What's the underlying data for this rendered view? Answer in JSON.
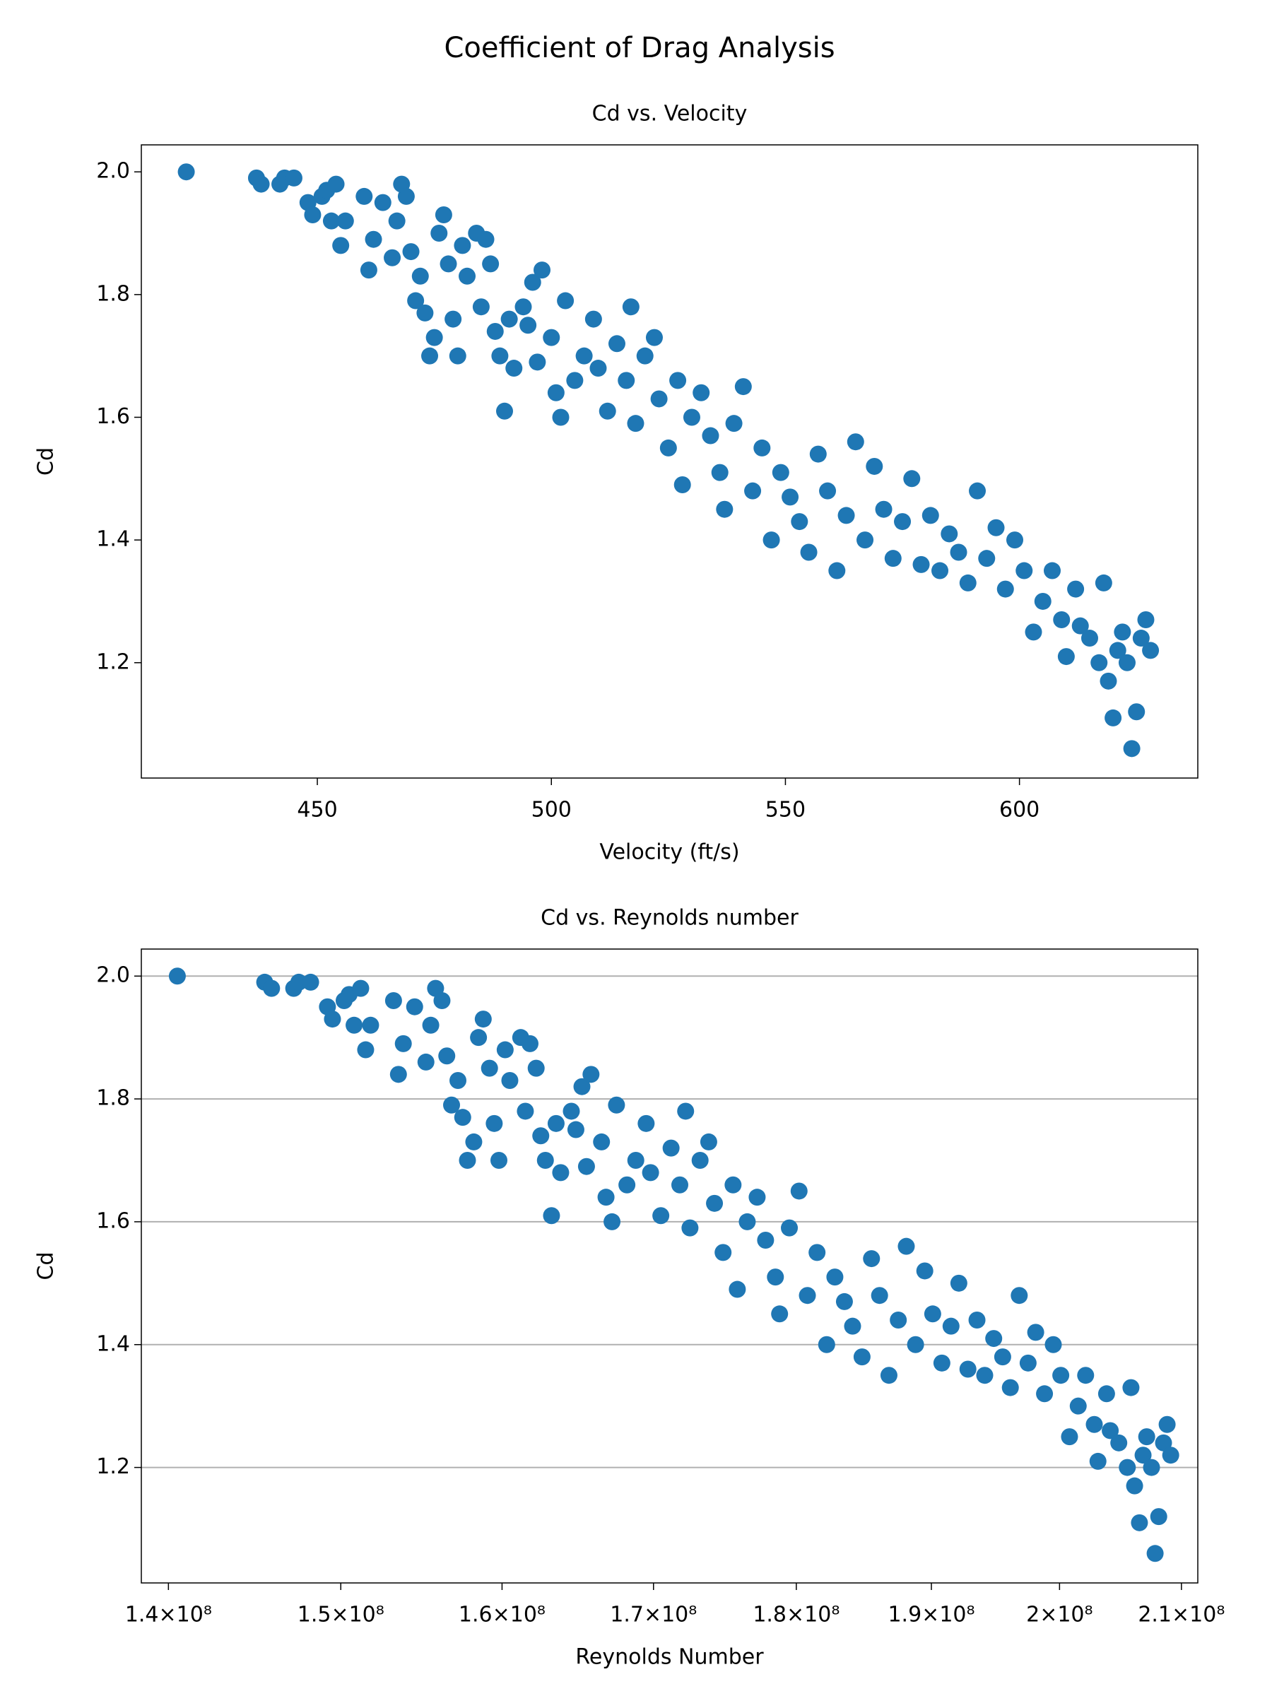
{
  "title": "Coefficient of Drag Analysis",
  "chart_data": [
    {
      "type": "scatter",
      "title": "Cd vs. Velocity",
      "xlabel": "Velocity (ft/s)",
      "ylabel": "Cd",
      "color": "#1f77b4",
      "grid": false,
      "xscale": "linear",
      "xlim": [
        412.4,
        638.1
      ],
      "ylim": [
        1.012,
        2.044
      ],
      "xticks": [
        450,
        500,
        550,
        600
      ],
      "yticks": [
        1.2,
        1.4,
        1.6,
        1.8,
        {
          "value": 2,
          "label": "2.0"
        }
      ],
      "x": [
        422,
        437,
        438,
        442,
        443,
        445,
        448,
        449,
        451,
        452,
        453,
        454,
        455,
        456,
        460,
        461,
        462,
        464,
        466,
        467,
        468,
        469,
        470,
        471,
        472,
        473,
        474,
        475,
        476,
        477,
        478,
        479,
        480,
        481,
        482,
        484,
        485,
        486,
        487,
        488,
        489,
        490,
        491,
        492,
        494,
        495,
        496,
        497,
        498,
        500,
        501,
        502,
        503,
        505,
        507,
        509,
        510,
        512,
        514,
        516,
        517,
        518,
        520,
        522,
        523,
        525,
        527,
        528,
        530,
        532,
        534,
        536,
        537,
        539,
        541,
        543,
        545,
        547,
        549,
        551,
        553,
        555,
        557,
        559,
        561,
        563,
        565,
        567,
        569,
        571,
        573,
        575,
        577,
        579,
        581,
        583,
        585,
        587,
        589,
        591,
        593,
        595,
        597,
        599,
        601,
        603,
        605,
        607,
        609,
        610,
        612,
        613,
        615,
        617,
        618,
        619,
        620,
        621,
        622,
        623,
        624,
        625,
        626,
        627,
        628
      ],
      "values": [
        2.0,
        1.99,
        1.98,
        1.98,
        1.99,
        1.99,
        1.95,
        1.93,
        1.96,
        1.97,
        1.92,
        1.98,
        1.88,
        1.92,
        1.96,
        1.84,
        1.89,
        1.95,
        1.86,
        1.92,
        1.98,
        1.96,
        1.87,
        1.79,
        1.83,
        1.77,
        1.7,
        1.73,
        1.9,
        1.93,
        1.85,
        1.76,
        1.7,
        1.88,
        1.83,
        1.9,
        1.78,
        1.89,
        1.85,
        1.74,
        1.7,
        1.61,
        1.76,
        1.68,
        1.78,
        1.75,
        1.82,
        1.69,
        1.84,
        1.73,
        1.64,
        1.6,
        1.79,
        1.66,
        1.7,
        1.76,
        1.68,
        1.61,
        1.72,
        1.66,
        1.78,
        1.59,
        1.7,
        1.73,
        1.63,
        1.55,
        1.66,
        1.49,
        1.6,
        1.64,
        1.57,
        1.51,
        1.45,
        1.59,
        1.65,
        1.48,
        1.55,
        1.4,
        1.51,
        1.47,
        1.43,
        1.38,
        1.54,
        1.48,
        1.35,
        1.44,
        1.56,
        1.4,
        1.52,
        1.45,
        1.37,
        1.43,
        1.5,
        1.36,
        1.44,
        1.35,
        1.41,
        1.38,
        1.33,
        1.48,
        1.37,
        1.42,
        1.32,
        1.4,
        1.35,
        1.25,
        1.3,
        1.35,
        1.27,
        1.21,
        1.32,
        1.26,
        1.24,
        1.2,
        1.33,
        1.17,
        1.11,
        1.22,
        1.25,
        1.2,
        1.06,
        1.12,
        1.24,
        1.27,
        1.22
      ]
    },
    {
      "type": "scatter",
      "title": "Cd vs. Reynolds number",
      "xlabel": "Reynolds Number",
      "ylabel": "Cd",
      "color": "#1f77b4",
      "grid": true,
      "xscale": "log",
      "xlim": [
        138490000.0,
        211380000.0
      ],
      "ylim": [
        1.012,
        2.044
      ],
      "xticks": [
        {
          "value": 140000000.0,
          "label": "1.4×10⁸"
        },
        {
          "value": 150000000.0,
          "label": "1.5×10⁸"
        },
        {
          "value": 160000000.0,
          "label": "1.6×10⁸"
        },
        {
          "value": 170000000.0,
          "label": "1.7×10⁸"
        },
        {
          "value": 180000000.0,
          "label": "1.8×10⁸"
        },
        {
          "value": 190000000.0,
          "label": "1.9×10⁸"
        },
        {
          "value": 200000000.0,
          "label": "2×10⁸"
        },
        {
          "value": 210000000.0,
          "label": "2.1×10⁸"
        }
      ],
      "yticks": [
        1.2,
        1.4,
        1.6,
        1.8,
        {
          "value": 2,
          "label": "2.0"
        }
      ],
      "x": [
        140500000.0,
        145500000.0,
        145900000.0,
        147200000.0,
        147500000.0,
        148200000.0,
        149200000.0,
        149500000.0,
        150200000.0,
        150500000.0,
        150800000.0,
        151200000.0,
        151500000.0,
        151800000.0,
        153200000.0,
        153500000.0,
        153800000.0,
        154500000.0,
        155200000.0,
        155500000.0,
        155800000.0,
        156200000.0,
        156500000.0,
        156800000.0,
        157200000.0,
        157500000.0,
        157800000.0,
        158200000.0,
        158500000.0,
        158800000.0,
        159200000.0,
        159500000.0,
        159800000.0,
        160200000.0,
        160500000.0,
        161200000.0,
        161500000.0,
        161800000.0,
        162200000.0,
        162500000.0,
        162800000.0,
        163200000.0,
        163500000.0,
        163800000.0,
        164500000.0,
        164800000.0,
        165200000.0,
        165500000.0,
        165800000.0,
        166500000.0,
        166800000.0,
        167200000.0,
        167500000.0,
        168200000.0,
        168800000.0,
        169500000.0,
        169800000.0,
        170500000.0,
        171200000.0,
        171800000.0,
        172200000.0,
        172500000.0,
        173200000.0,
        173800000.0,
        174200000.0,
        174800000.0,
        175500000.0,
        175800000.0,
        176500000.0,
        177200000.0,
        177800000.0,
        178500000.0,
        178800000.0,
        179500000.0,
        180200000.0,
        180800000.0,
        181500000.0,
        182200000.0,
        182800000.0,
        183500000.0,
        184100000.0,
        184800000.0,
        185500000.0,
        186100000.0,
        186800000.0,
        187500000.0,
        188100000.0,
        188800000.0,
        189500000.0,
        190100000.0,
        190800000.0,
        191500000.0,
        192100000.0,
        192800000.0,
        193500000.0,
        194100000.0,
        194800000.0,
        195500000.0,
        196100000.0,
        196800000.0,
        197500000.0,
        198100000.0,
        198800000.0,
        199500000.0,
        200100000.0,
        200800000.0,
        201500000.0,
        202100000.0,
        202800000.0,
        203100000.0,
        203800000.0,
        204100000.0,
        204800000.0,
        205500000.0,
        205800000.0,
        206100000.0,
        206500000.0,
        206800000.0,
        207100000.0,
        207500000.0,
        207800000.0,
        208100000.0,
        208500000.0,
        208800000.0,
        209100000.0
      ],
      "values": [
        2.0,
        1.99,
        1.98,
        1.98,
        1.99,
        1.99,
        1.95,
        1.93,
        1.96,
        1.97,
        1.92,
        1.98,
        1.88,
        1.92,
        1.96,
        1.84,
        1.89,
        1.95,
        1.86,
        1.92,
        1.98,
        1.96,
        1.87,
        1.79,
        1.83,
        1.77,
        1.7,
        1.73,
        1.9,
        1.93,
        1.85,
        1.76,
        1.7,
        1.88,
        1.83,
        1.9,
        1.78,
        1.89,
        1.85,
        1.74,
        1.7,
        1.61,
        1.76,
        1.68,
        1.78,
        1.75,
        1.82,
        1.69,
        1.84,
        1.73,
        1.64,
        1.6,
        1.79,
        1.66,
        1.7,
        1.76,
        1.68,
        1.61,
        1.72,
        1.66,
        1.78,
        1.59,
        1.7,
        1.73,
        1.63,
        1.55,
        1.66,
        1.49,
        1.6,
        1.64,
        1.57,
        1.51,
        1.45,
        1.59,
        1.65,
        1.48,
        1.55,
        1.4,
        1.51,
        1.47,
        1.43,
        1.38,
        1.54,
        1.48,
        1.35,
        1.44,
        1.56,
        1.4,
        1.52,
        1.45,
        1.37,
        1.43,
        1.5,
        1.36,
        1.44,
        1.35,
        1.41,
        1.38,
        1.33,
        1.48,
        1.37,
        1.42,
        1.32,
        1.4,
        1.35,
        1.25,
        1.3,
        1.35,
        1.27,
        1.21,
        1.32,
        1.26,
        1.24,
        1.2,
        1.33,
        1.17,
        1.11,
        1.22,
        1.25,
        1.2,
        1.06,
        1.12,
        1.24,
        1.27,
        1.22
      ]
    }
  ]
}
